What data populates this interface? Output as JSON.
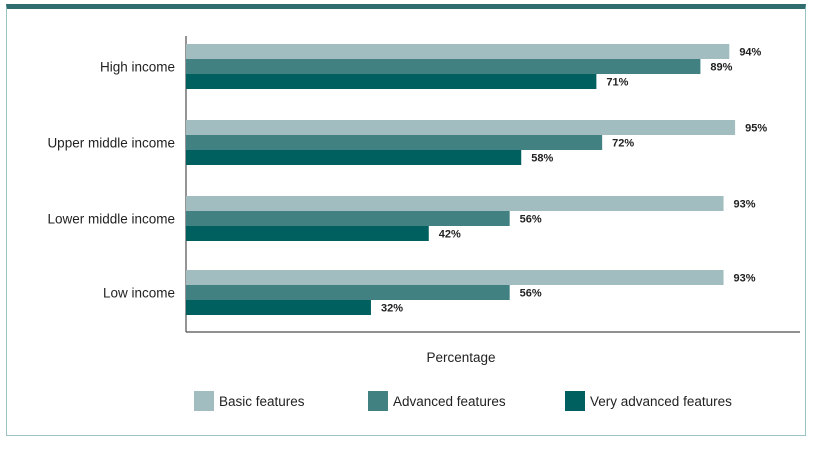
{
  "chart_data": {
    "type": "bar",
    "orientation": "horizontal",
    "categories": [
      "High income",
      "Upper middle income",
      "Lower middle income",
      "Low income"
    ],
    "series": [
      {
        "name": "Basic features",
        "color": "#a1bdbf",
        "values": [
          94,
          95,
          93,
          93
        ]
      },
      {
        "name": "Advanced features",
        "color": "#428182",
        "values": [
          89,
          72,
          56,
          56
        ]
      },
      {
        "name": "Very advanced features",
        "color": "#005f5f",
        "values": [
          71,
          58,
          42,
          32
        ]
      }
    ],
    "value_suffix": "%",
    "xlabel": "Percentage",
    "ylabel": "",
    "xlim": [
      0,
      100
    ],
    "grid": false,
    "legend_position": "bottom"
  }
}
